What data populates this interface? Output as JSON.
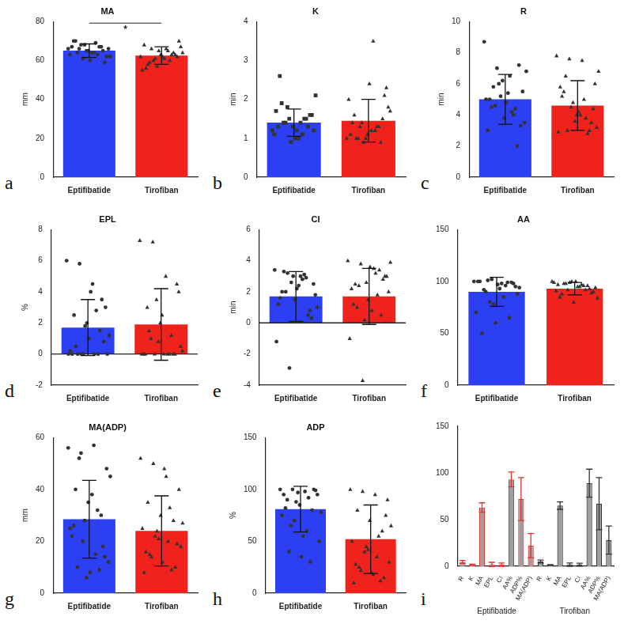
{
  "chart_data": [
    {
      "type": "bar",
      "panel_label": "a",
      "title": "MA",
      "y_label": "mm",
      "annotation": "*",
      "categories": [
        "Eptifibatide",
        "Tirofiban"
      ],
      "values": [
        65,
        62.5
      ],
      "errors": [
        3.5,
        4.5
      ],
      "colors": [
        "#2d3ff2",
        "#f0231c"
      ],
      "markers": [
        "circle",
        "triangle"
      ],
      "points": [
        [
          66,
          68,
          64,
          62,
          70,
          65,
          67,
          63,
          61,
          69,
          66,
          64,
          60,
          65,
          67,
          68,
          63,
          62,
          66,
          64,
          59,
          70,
          65,
          67
        ],
        [
          62,
          60,
          66,
          70,
          58,
          63,
          64,
          55,
          61,
          65,
          67,
          59,
          62,
          63,
          68,
          57,
          60,
          64,
          66,
          61,
          62,
          56,
          65,
          63
        ]
      ],
      "ylim": [
        0,
        80
      ],
      "yticks": [
        0,
        20,
        40,
        60,
        80
      ],
      "grid": false
    },
    {
      "type": "bar",
      "panel_label": "b",
      "title": "K",
      "y_label": "min",
      "categories": [
        "Eptifibatide",
        "Tirofiban"
      ],
      "values": [
        1.4,
        1.45
      ],
      "errors": [
        0.35,
        0.55
      ],
      "colors": [
        "#2d3ff2",
        "#f0231c"
      ],
      "markers": [
        "square",
        "triangle"
      ],
      "points": [
        [
          1.2,
          1.4,
          1.0,
          1.6,
          2.6,
          1.3,
          1.5,
          1.1,
          1.8,
          1.4,
          1.2,
          1.9,
          1.0,
          1.3,
          1.7,
          1.5,
          1.1,
          2.1,
          1.4,
          1.2,
          1.6,
          1.3,
          0.9,
          1.5
        ],
        [
          1.0,
          1.3,
          3.5,
          2.3,
          1.6,
          1.1,
          0.9,
          2.0,
          1.4,
          1.2,
          1.8,
          1.0,
          2.4,
          1.5,
          1.1,
          0.9,
          1.3,
          1.7,
          1.0,
          1.2,
          2.1,
          1.4,
          1.0,
          1.3
        ]
      ],
      "ylim": [
        0,
        4
      ],
      "yticks": [
        0,
        1,
        2,
        3,
        4
      ],
      "grid": false
    },
    {
      "type": "bar",
      "panel_label": "c",
      "title": "R",
      "y_label": "min",
      "categories": [
        "Eptifibatide",
        "Tirofiban"
      ],
      "values": [
        5.0,
        4.6
      ],
      "errors": [
        1.6,
        1.6
      ],
      "colors": [
        "#2d3ff2",
        "#f0231c"
      ],
      "markers": [
        "circle",
        "triangle"
      ],
      "points": [
        [
          8.7,
          7.0,
          6.5,
          5.5,
          4.5,
          3.8,
          2.0,
          5.0,
          6.0,
          4.2,
          3.5,
          5.8,
          4.8,
          7.2,
          3.0,
          5.2,
          4.0,
          6.8,
          4.6,
          5.4,
          3.3,
          5.0,
          6.2,
          4.4
        ],
        [
          7.8,
          7.6,
          7.5,
          6.0,
          5.5,
          4.0,
          3.0,
          2.9,
          4.5,
          5.0,
          3.2,
          6.5,
          4.2,
          3.5,
          5.8,
          4.8,
          3.8,
          6.8,
          3.0,
          4.0,
          4.4,
          5.2,
          3.6,
          2.8
        ]
      ],
      "ylim": [
        0,
        10
      ],
      "yticks": [
        0,
        2,
        4,
        6,
        8,
        10
      ],
      "grid": false
    },
    {
      "type": "bar",
      "panel_label": "d",
      "title": "EPL",
      "y_label": "%",
      "categories": [
        "Eptifibatide",
        "Tirofiban"
      ],
      "values": [
        1.7,
        1.9
      ],
      "errors": [
        1.8,
        2.3
      ],
      "colors": [
        "#2d3ff2",
        "#f0231c"
      ],
      "markers": [
        "circle",
        "triangle"
      ],
      "points": [
        [
          6.0,
          5.8,
          4.5,
          3.0,
          2.5,
          2.0,
          1.5,
          0,
          0,
          0,
          0,
          0.5,
          1.0,
          3.5,
          0.2,
          0,
          2.8,
          1.2,
          0,
          4.0,
          0.8,
          0,
          1.8,
          0
        ],
        [
          7.3,
          7.2,
          5.0,
          4.0,
          3.0,
          2.0,
          0,
          0,
          0,
          0,
          0.5,
          1.5,
          2.5,
          0,
          0,
          3.5,
          0,
          0.2,
          1.0,
          0,
          4.5,
          0,
          0.8,
          1.2
        ]
      ],
      "ylim": [
        -2,
        8
      ],
      "yticks": [
        -2,
        0,
        2,
        4,
        6,
        8
      ],
      "grid": false
    },
    {
      "type": "bar",
      "panel_label": "e",
      "title": "CI",
      "y_label": "min",
      "categories": [
        "Eptifibatide",
        "Tirofiban"
      ],
      "values": [
        1.7,
        1.7
      ],
      "errors": [
        1.6,
        1.8
      ],
      "colors": [
        "#2d3ff2",
        "#f0231c"
      ],
      "markers": [
        "circle",
        "triangle"
      ],
      "points": [
        [
          3.4,
          3.2,
          3.0,
          2.5,
          2.0,
          1.5,
          0.5,
          -1.2,
          -2.9,
          2.8,
          1.8,
          3.3,
          2.2,
          0.8,
          1.2,
          2.6,
          3.1,
          1.0,
          2.0,
          2.4,
          0.3,
          1.6,
          3.0,
          2.9
        ],
        [
          4.0,
          3.8,
          3.5,
          3.0,
          2.5,
          1.5,
          0.5,
          -1.0,
          -3.7,
          3.2,
          2.0,
          1.0,
          3.6,
          2.8,
          2.2,
          0.2,
          1.8,
          3.9,
          2.4,
          0.8,
          3.0,
          1.2,
          2.6,
          3.4
        ]
      ],
      "ylim": [
        -4,
        6
      ],
      "yticks": [
        -4,
        -2,
        0,
        2,
        4,
        6
      ],
      "grid": false
    },
    {
      "type": "bar",
      "panel_label": "f",
      "title": "AA",
      "categories": [
        "Eptifibatide",
        "Tirofiban"
      ],
      "values": [
        90,
        93
      ],
      "errors": [
        14,
        6
      ],
      "colors": [
        "#2d3ff2",
        "#f0231c"
      ],
      "markers": [
        "circle",
        "triangle"
      ],
      "points": [
        [
          100,
          101,
          98,
          95,
          50,
          60,
          65,
          70,
          80,
          85,
          88,
          92,
          97,
          99,
          100,
          102,
          96,
          94,
          90,
          93,
          98,
          100,
          78,
          99
        ],
        [
          100,
          98,
          95,
          90,
          85,
          80,
          96,
          99,
          92,
          97,
          94,
          88,
          100,
          93,
          91,
          99,
          96,
          84,
          98,
          95,
          89,
          97,
          100,
          92
        ]
      ],
      "ylim": [
        0,
        150
      ],
      "yticks": [
        0,
        50,
        100,
        150
      ],
      "grid": false
    },
    {
      "type": "bar",
      "panel_label": "g",
      "title": "MA(ADP)",
      "y_label": "mm",
      "categories": [
        "Eptifibatide",
        "Tirofiban"
      ],
      "values": [
        28.5,
        24
      ],
      "errors": [
        15,
        13.5
      ],
      "colors": [
        "#2d3ff2",
        "#f0231c"
      ],
      "markers": [
        "circle",
        "triangle"
      ],
      "points": [
        [
          56,
          54,
          57,
          48,
          40,
          35,
          30,
          25,
          20,
          15,
          12,
          10,
          8,
          18,
          22,
          28,
          32,
          45,
          52,
          38,
          14,
          26,
          6,
          9
        ],
        [
          52,
          50,
          45,
          40,
          35,
          30,
          28,
          25,
          22,
          20,
          18,
          15,
          12,
          10,
          8,
          24,
          33,
          27,
          14,
          48,
          19,
          16,
          21,
          9
        ]
      ],
      "ylim": [
        0,
        60
      ],
      "yticks": [
        0,
        20,
        40,
        60
      ],
      "grid": false
    },
    {
      "type": "bar",
      "panel_label": "h",
      "title": "ADP",
      "y_label": "%",
      "categories": [
        "Eptifibatide",
        "Tirofiban"
      ],
      "values": [
        81,
        52
      ],
      "errors": [
        22,
        33
      ],
      "colors": [
        "#2d3ff2",
        "#f0231c"
      ],
      "markers": [
        "circle",
        "triangle"
      ],
      "points": [
        [
          100,
          100,
          98,
          95,
          90,
          85,
          80,
          75,
          70,
          60,
          50,
          40,
          35,
          100,
          95,
          88,
          92,
          78,
          65,
          55,
          99,
          82,
          97,
          30
        ],
        [
          100,
          98,
          95,
          90,
          80,
          70,
          60,
          50,
          40,
          35,
          30,
          25,
          20,
          15,
          10,
          45,
          55,
          65,
          22,
          18,
          75,
          28,
          42,
          12
        ]
      ],
      "ylim": [
        0,
        150
      ],
      "yticks": [
        0,
        50,
        100,
        150
      ],
      "grid": false
    },
    {
      "type": "bar",
      "panel_label": "i",
      "categories": [
        "R",
        "K",
        "MA",
        "EPL",
        "CI",
        "AA%",
        "ADP%",
        "MA(ADP)",
        "R",
        "K",
        "MA",
        "EPL",
        "CI",
        "AA%",
        "ADP%",
        "MA(ADP)"
      ],
      "group_labels": [
        "Eptifibatide",
        "Tirofiban"
      ],
      "values": [
        4.6,
        1.5,
        63,
        1.9,
        1.7,
        93,
        72,
        22,
        5.0,
        1.4,
        65,
        1.7,
        1.7,
        89,
        67,
        28
      ],
      "errors": [
        1.6,
        0.6,
        5,
        2.3,
        1.8,
        8,
        23,
        13,
        1.6,
        0.4,
        4,
        1.8,
        1.6,
        15,
        28,
        15
      ],
      "colors": [
        "#e8302a",
        "#e8302a",
        "#e8302a",
        "#e8302a",
        "#e8302a",
        "#e8302a",
        "#e8302a",
        "#e8302a",
        "#333333",
        "#333333",
        "#333333",
        "#333333",
        "#333333",
        "#333333",
        "#333333",
        "#333333"
      ],
      "ylim": [
        0,
        150
      ],
      "yticks": [
        0,
        50,
        100,
        150
      ],
      "grid": false
    }
  ]
}
